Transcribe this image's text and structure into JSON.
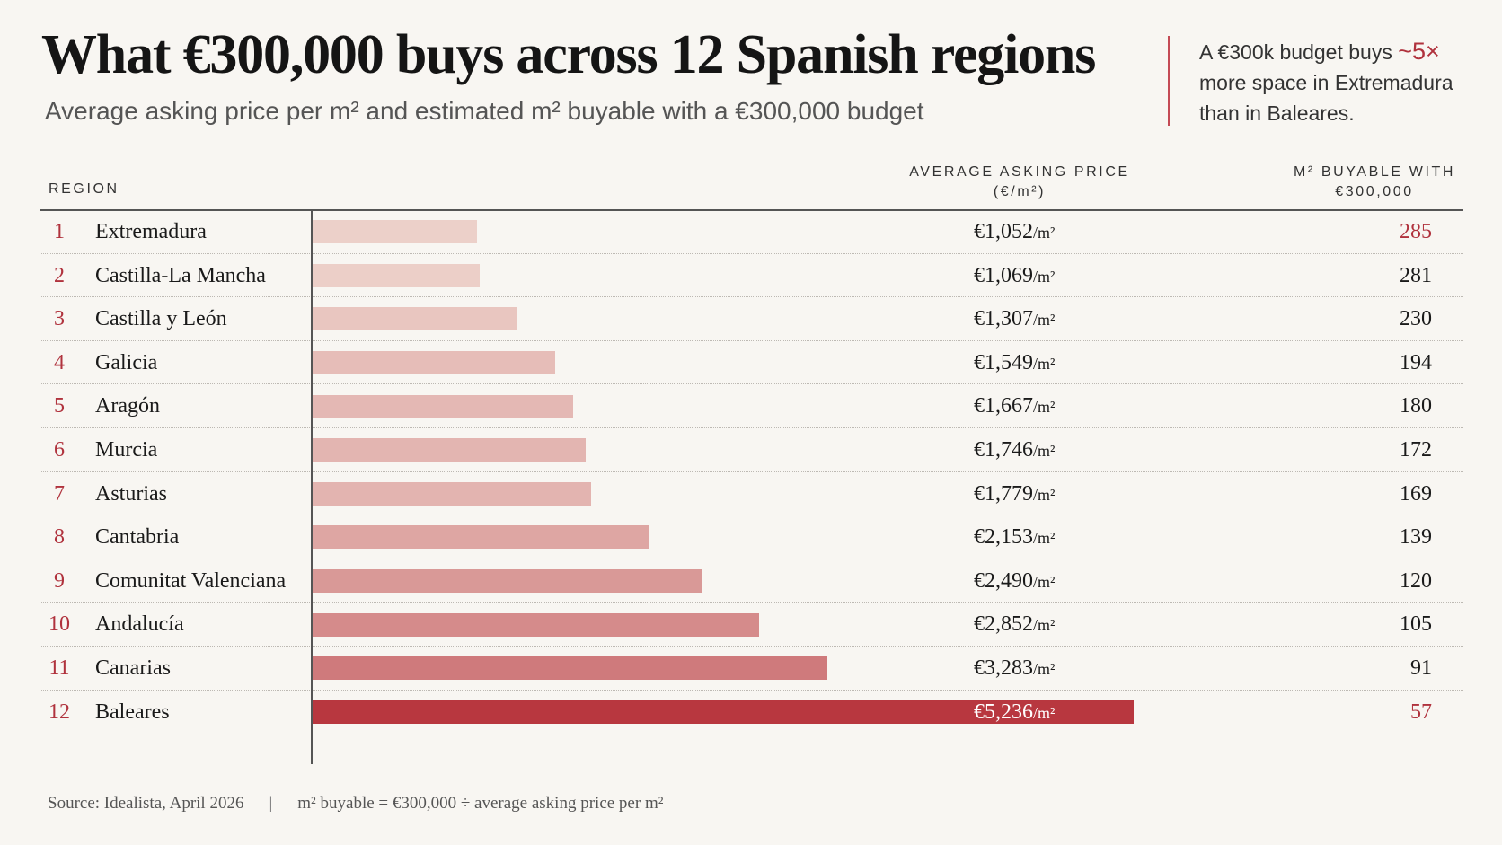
{
  "title": "What €300,000 buys across 12 Spanish regions",
  "subtitle": "Average asking price per m² and estimated m² buyable with a €300,000 budget",
  "callout": {
    "text_before": "A €300k budget buys ",
    "highlight": "~5×",
    "text_after": " more space in Extremadura than in Baleares."
  },
  "headers": {
    "region": "REGION",
    "price_line1": "AVERAGE ASKING PRICE",
    "price_line2": "(€/m²)",
    "m2_line1": "M² BUYABLE WITH",
    "m2_line2": "€300,000"
  },
  "price_unit": "/m²",
  "colors": {
    "accent": "#b0323d",
    "highlight_bar": "#b8373f",
    "bar_light": "#ecd0c9",
    "bar_dark": "#cf7a7c"
  },
  "chart_data": {
    "type": "bar",
    "orientation": "horizontal",
    "title": "What €300,000 buys across 12 Spanish regions",
    "subtitle": "Average asking price per m² and estimated m² buyable with a €300,000 budget",
    "ranks": [
      "1",
      "2",
      "3",
      "4",
      "5",
      "6",
      "7",
      "8",
      "9",
      "10",
      "11",
      "12"
    ],
    "categories": [
      "Extremadura",
      "Castilla-La Mancha",
      "Castilla y León",
      "Galicia",
      "Aragón",
      "Murcia",
      "Asturias",
      "Cantabria",
      "Comunitat Valenciana",
      "Andalucía",
      "Canarias",
      "Baleares"
    ],
    "values": [
      1052,
      1069,
      1307,
      1549,
      1667,
      1746,
      1779,
      2153,
      2490,
      2852,
      3283,
      5236
    ],
    "price_labels": [
      "€1,052",
      "€1,069",
      "€1,307",
      "€1,549",
      "€1,667",
      "€1,746",
      "€1,779",
      "€2,153",
      "€2,490",
      "€2,852",
      "€3,283",
      "€5,236"
    ],
    "m2_buyable": [
      "285",
      "281",
      "230",
      "194",
      "180",
      "172",
      "169",
      "139",
      "120",
      "105",
      "91",
      "57"
    ],
    "highlighted": [
      "Extremadura",
      "Baleares"
    ],
    "xlim": [
      0,
      5236
    ]
  },
  "footer": {
    "source": "Source: Idealista, April 2026",
    "separator": "|",
    "note": "m² buyable = €300,000 ÷ average asking price per m²"
  }
}
